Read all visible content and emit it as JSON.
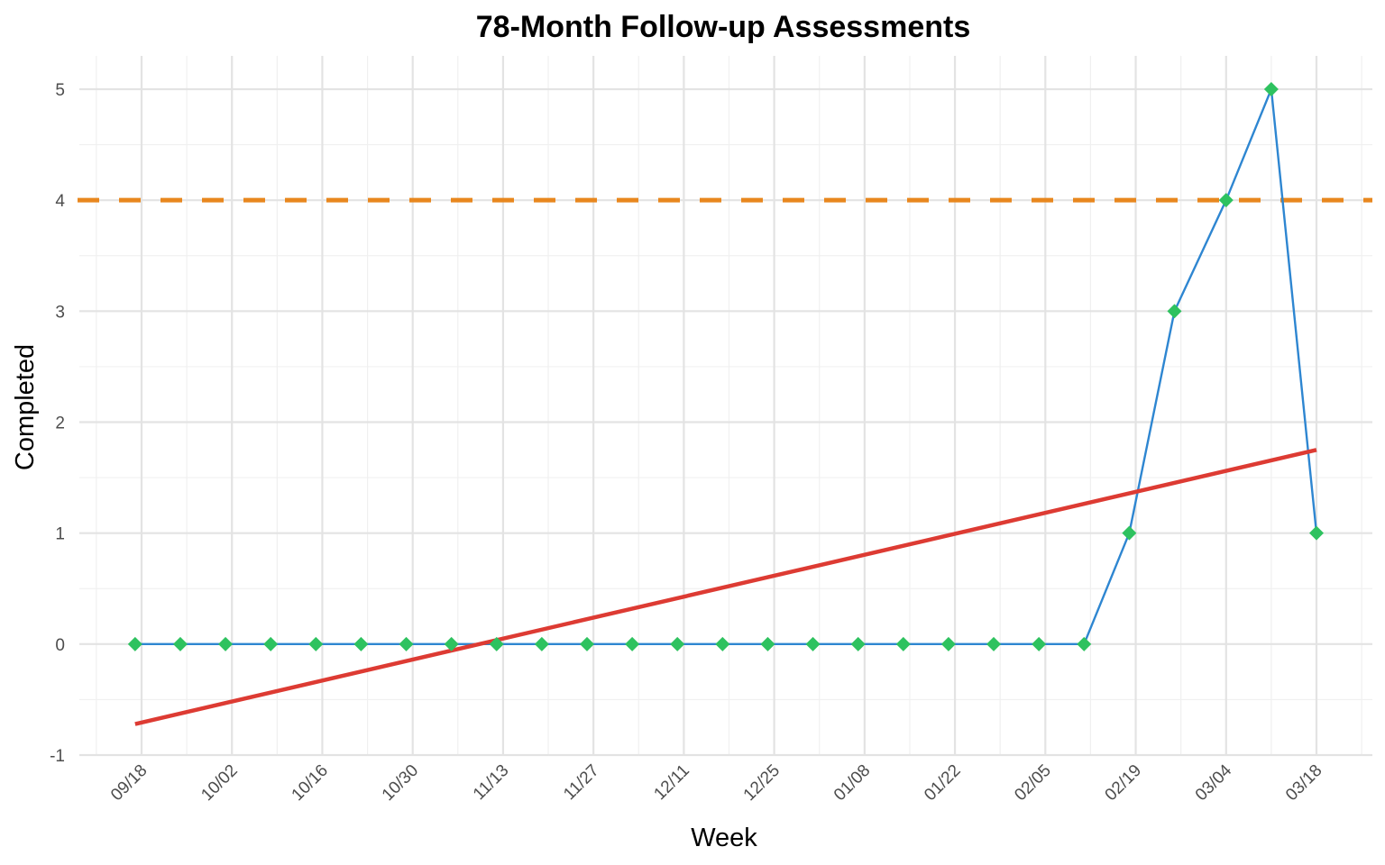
{
  "chart_data": {
    "type": "line",
    "title": "78-Month Follow-up Assessments",
    "xlabel": "Week",
    "ylabel": "Completed",
    "ylim": [
      -1,
      5.25
    ],
    "yticks": [
      -1,
      0,
      1,
      2,
      3,
      4,
      5
    ],
    "x_tick_labels": [
      "09/18",
      "10/02",
      "10/16",
      "10/30",
      "11/13",
      "11/27",
      "12/11",
      "12/25",
      "01/08",
      "01/22",
      "02/05",
      "02/19",
      "03/04",
      "03/18"
    ],
    "x": [
      "09/17",
      "09/24",
      "10/01",
      "10/08",
      "10/15",
      "10/22",
      "10/29",
      "11/05",
      "11/12",
      "11/19",
      "11/26",
      "12/03",
      "12/10",
      "12/17",
      "12/24",
      "12/31",
      "01/07",
      "01/14",
      "01/21",
      "01/28",
      "02/04",
      "02/11",
      "02/18",
      "02/25",
      "03/04",
      "03/11",
      "03/18"
    ],
    "series": [
      {
        "values": [
          0,
          0,
          0,
          0,
          0,
          0,
          0,
          0,
          0,
          0,
          0,
          0,
          0,
          0,
          0,
          0,
          0,
          0,
          0,
          0,
          0,
          0,
          1,
          3,
          4,
          5,
          1
        ],
        "line_color": "#2e86d1",
        "marker_color": "#2ec25f",
        "marker": "diamond"
      }
    ],
    "trend_line": {
      "x_start": "09/17",
      "y_start": -0.72,
      "x_end": "03/18",
      "y_end": 1.75,
      "color": "#dd3b33"
    },
    "target_line": {
      "y": 4,
      "color": "#e8871e",
      "style": "dashed"
    },
    "grid": true,
    "legend": "none"
  }
}
